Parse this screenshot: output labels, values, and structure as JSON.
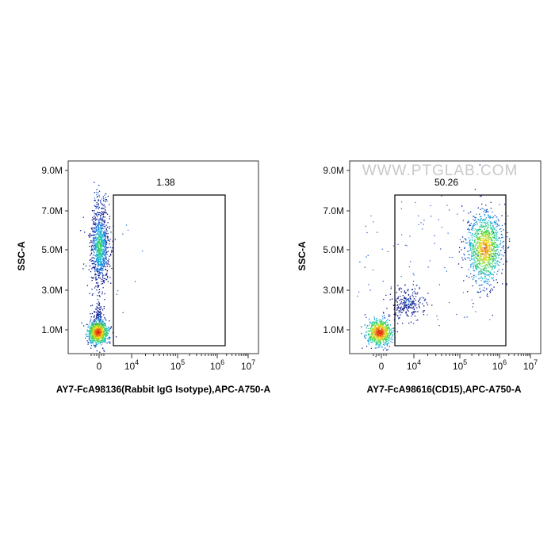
{
  "watermark": "WWW.PTGLAB.COM",
  "chart_data": [
    {
      "type": "scatter",
      "title": "",
      "xlabel": "AY7-FcA98136(Rabbit IgG Isotype),APC-A750-A",
      "ylabel": "SSC-A",
      "x_scale": "biexponential",
      "y_scale": "linear",
      "ylim": [
        0,
        10000000
      ],
      "y_ticks": [
        "1.0M",
        "3.0M",
        "5.0M",
        "7.0M",
        "9.0M"
      ],
      "x_ticks": [
        "0",
        "10",
        "10",
        "10",
        "10"
      ],
      "x_tick_exponents": [
        "",
        "4",
        "5",
        "6",
        "7"
      ],
      "gate": {
        "label": "1.38",
        "percent": 1.38,
        "x_range": [
          1500,
          1500000
        ],
        "y_range": [
          300000,
          7700000
        ]
      },
      "populations": [
        {
          "name": "",
          "x_center": 0,
          "y_center": 900000,
          "count": 900,
          "share": 0.55
        },
        {
          "name": "",
          "x_center": 0,
          "y_center": 5200000,
          "count": 900,
          "share": 0.44
        }
      ]
    },
    {
      "type": "scatter",
      "title": "",
      "xlabel": "AY7-FcA98616(CD15),APC-A750-A",
      "ylabel": "SSC-A",
      "x_scale": "biexponential",
      "y_scale": "linear",
      "ylim": [
        0,
        10000000
      ],
      "y_ticks": [
        "1.0M",
        "3.0M",
        "5.0M",
        "7.0M",
        "9.0M"
      ],
      "x_ticks": [
        "0",
        "10",
        "10",
        "10",
        "10"
      ],
      "x_tick_exponents": [
        "",
        "4",
        "5",
        "6",
        "7"
      ],
      "gate": {
        "label": "50.26",
        "percent": 50.26,
        "x_range": [
          1500,
          1500000
        ],
        "y_range": [
          300000,
          7700000
        ]
      },
      "populations": [
        {
          "name": "",
          "x_center": 0,
          "y_center": 900000,
          "count": 700,
          "share": 0.42
        },
        {
          "name": "",
          "x_center": 400000,
          "y_center": 5100000,
          "count": 1100,
          "share": 0.5
        },
        {
          "name": "",
          "x_center": 8000,
          "y_center": 2400000,
          "count": 220,
          "share": 0.08
        }
      ]
    }
  ]
}
